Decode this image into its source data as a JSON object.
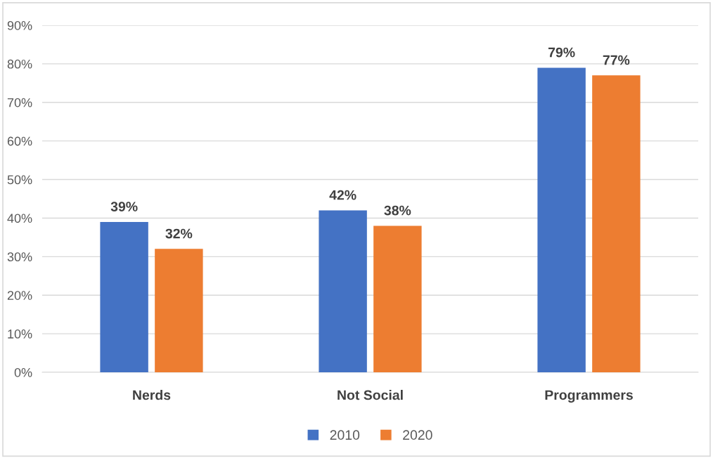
{
  "chart_data": {
    "type": "bar",
    "categories": [
      "Nerds",
      "Not Social",
      "Programmers"
    ],
    "series": [
      {
        "name": "2010",
        "color": "#4472c4",
        "values": [
          39,
          42,
          79
        ],
        "value_labels": [
          "39%",
          "42%",
          "79%"
        ]
      },
      {
        "name": "2020",
        "color": "#ed7d31",
        "values": [
          32,
          38,
          77
        ],
        "value_labels": [
          "32%",
          "38%",
          "77%"
        ]
      }
    ],
    "ylim": [
      0,
      90
    ],
    "yticks": [
      {
        "value": 0,
        "label": "0%"
      },
      {
        "value": 10,
        "label": "10%"
      },
      {
        "value": 20,
        "label": "20%"
      },
      {
        "value": 30,
        "label": "30%"
      },
      {
        "value": 40,
        "label": "40%"
      },
      {
        "value": 50,
        "label": "50%"
      },
      {
        "value": 60,
        "label": "60%"
      },
      {
        "value": 70,
        "label": "70%"
      },
      {
        "value": 80,
        "label": "80%"
      },
      {
        "value": 90,
        "label": "90%"
      }
    ],
    "grid": "y",
    "legend": "bottom"
  }
}
